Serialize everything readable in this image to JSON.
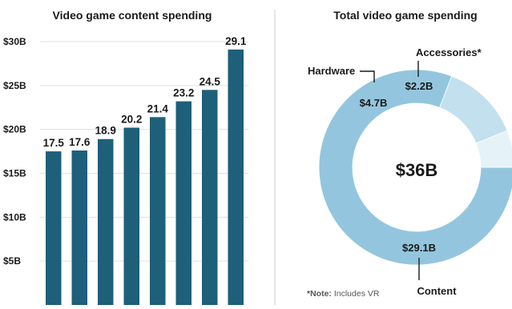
{
  "colors": {
    "bar": "#1e5f7a",
    "grid": "#e0e0e0",
    "divider": "#cccccc",
    "donut": [
      "#93c6de",
      "#c3e0ee",
      "#e5f2f8"
    ]
  },
  "chart_data": [
    {
      "type": "bar",
      "title": "Video game content spending",
      "categories": [
        "",
        "",
        "",
        "",
        "",
        "",
        "",
        ""
      ],
      "values": [
        17.5,
        17.6,
        18.9,
        20.2,
        21.4,
        23.2,
        24.5,
        29.1
      ],
      "data_labels": [
        "17.5",
        "17.6",
        "18.9",
        "20.2",
        "21.4",
        "23.2",
        "24.5",
        "29.1"
      ],
      "yticks": [
        {
          "value": 5,
          "label": "$5B"
        },
        {
          "value": 10,
          "label": "$10B"
        },
        {
          "value": 15,
          "label": "$15B"
        },
        {
          "value": 20,
          "label": "$20B"
        },
        {
          "value": 25,
          "label": "$25B"
        },
        {
          "value": 30,
          "label": "$30B"
        }
      ],
      "ylim": [
        0,
        30
      ],
      "grid": true
    },
    {
      "type": "pie",
      "title": "Total video game spending",
      "center_label": "$36B",
      "slices": [
        {
          "name": "Content",
          "value": 29.1,
          "label": "$29.1B"
        },
        {
          "name": "Hardware",
          "value": 4.7,
          "label": "$4.7B"
        },
        {
          "name": "Accessories*",
          "value": 2.2,
          "label": "$2.2B"
        }
      ],
      "note_prefix": "*Note:",
      "note_text": " Includes VR"
    }
  ]
}
